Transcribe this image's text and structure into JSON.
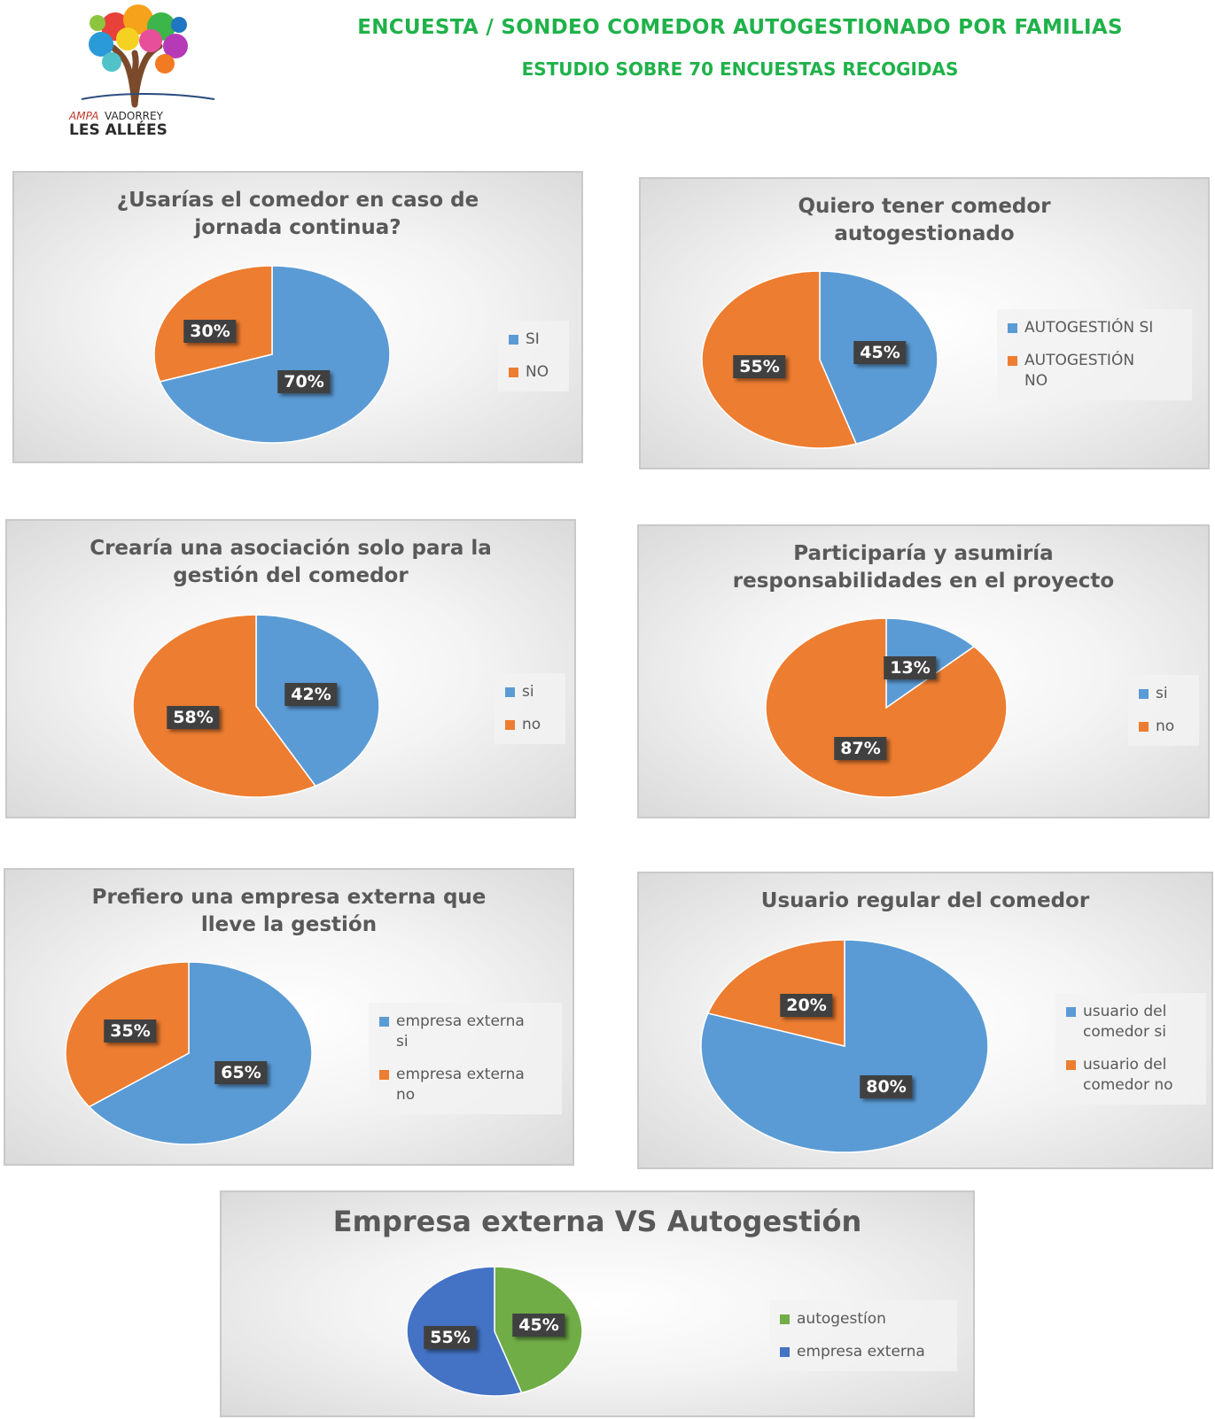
{
  "header": {
    "title": "ENCUESTA / SONDEO COMEDOR AUTOGESTIONADO POR FAMILIAS",
    "subtitle": "ESTUDIO SOBRE 70 ENCUESTAS RECOGIDAS",
    "logo_line1": "AMPA VADORREY",
    "logo_line2": "LES ALLÉES"
  },
  "colors": {
    "blue": "#5b9bd5",
    "orange": "#ed7d31",
    "green": "#70ad47",
    "darkblue": "#4472c4"
  },
  "chart_data": [
    {
      "type": "pie",
      "title": "¿Usarías el comedor en caso de\njornada continua?",
      "categories": [
        "SI",
        "NO"
      ],
      "values": [
        70,
        30
      ],
      "labels": [
        "70%",
        "30%"
      ],
      "colors": [
        "#5b9bd5",
        "#ed7d31"
      ],
      "legend": "right"
    },
    {
      "type": "pie",
      "title": "Quiero tener comedor\nautogestionado",
      "categories": [
        "AUTOGESTIÓN SI",
        "AUTOGESTIÓN\nNO"
      ],
      "values": [
        45,
        55
      ],
      "labels": [
        "45%",
        "55%"
      ],
      "colors": [
        "#5b9bd5",
        "#ed7d31"
      ],
      "legend": "right"
    },
    {
      "type": "pie",
      "title": "Crearía una asociación solo para la\ngestión del comedor",
      "categories": [
        "si",
        "no"
      ],
      "values": [
        42,
        58
      ],
      "labels": [
        "42%",
        "58%"
      ],
      "colors": [
        "#5b9bd5",
        "#ed7d31"
      ],
      "legend": "right"
    },
    {
      "type": "pie",
      "title": "Participaría y asumiría\nresponsabilidades en el proyecto",
      "categories": [
        "si",
        "no"
      ],
      "values": [
        13,
        87
      ],
      "labels": [
        "13%",
        "87%"
      ],
      "colors": [
        "#5b9bd5",
        "#ed7d31"
      ],
      "legend": "right"
    },
    {
      "type": "pie",
      "title": "Prefiero una empresa externa que\nlleve la gestión",
      "categories": [
        "empresa externa\nsi",
        "empresa externa\nno"
      ],
      "values": [
        65,
        35
      ],
      "labels": [
        "65%",
        "35%"
      ],
      "colors": [
        "#5b9bd5",
        "#ed7d31"
      ],
      "legend": "right"
    },
    {
      "type": "pie",
      "title": "Usuario regular del  comedor",
      "categories": [
        "usuario del\ncomedor si",
        "usuario del\ncomedor no"
      ],
      "values": [
        80,
        20
      ],
      "labels": [
        "80%",
        "20%"
      ],
      "colors": [
        "#5b9bd5",
        "#ed7d31"
      ],
      "legend": "right"
    },
    {
      "type": "pie",
      "title": "Empresa externa VS Autogestión",
      "categories": [
        "autogestíon",
        "empresa externa"
      ],
      "values": [
        45,
        55
      ],
      "labels": [
        "45%",
        "55%"
      ],
      "colors": [
        "#70ad47",
        "#4472c4"
      ],
      "legend": "right"
    }
  ]
}
